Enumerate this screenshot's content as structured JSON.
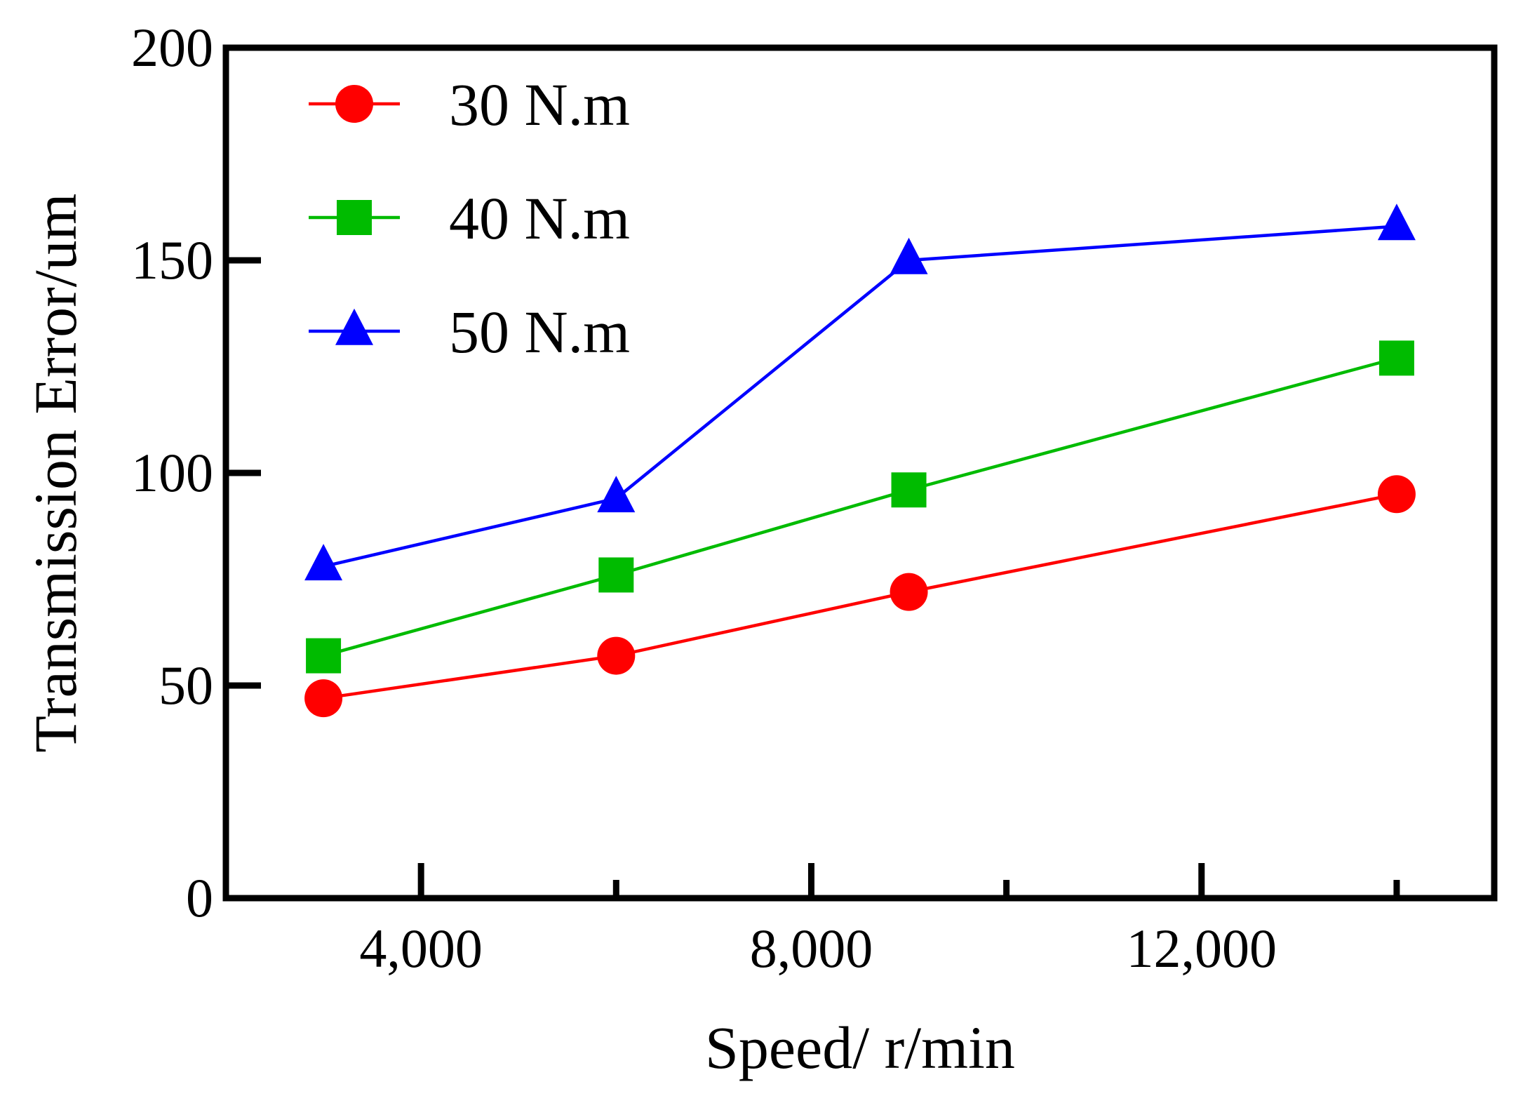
{
  "chart_data": {
    "type": "line",
    "title": "",
    "xlabel": "Speed/ r/min",
    "ylabel": "Transmission Error/um",
    "xlim": [
      2000,
      15000
    ],
    "ylim": [
      0,
      200
    ],
    "x_ticks": [
      4000,
      8000,
      12000
    ],
    "x_tick_labels": [
      "4,000",
      "8,000",
      "12,000"
    ],
    "x_minor_ticks": [
      6000,
      10000,
      14000
    ],
    "y_ticks": [
      0,
      50,
      100,
      150,
      200
    ],
    "y_tick_labels": [
      "0",
      "50",
      "100",
      "150",
      "200"
    ],
    "legend_position": "top-left",
    "x": [
      3000,
      6000,
      9000,
      14000
    ],
    "series": [
      {
        "name": "30 N.m",
        "marker": "circle",
        "color": "#ff0000",
        "values": [
          47,
          57,
          72,
          95
        ]
      },
      {
        "name": "40 N.m",
        "marker": "square",
        "color": "#00bb00",
        "values": [
          57,
          76,
          96,
          127
        ]
      },
      {
        "name": "50 N.m",
        "marker": "triangle",
        "color": "#0000ff",
        "values": [
          78,
          94,
          150,
          158
        ]
      }
    ]
  }
}
